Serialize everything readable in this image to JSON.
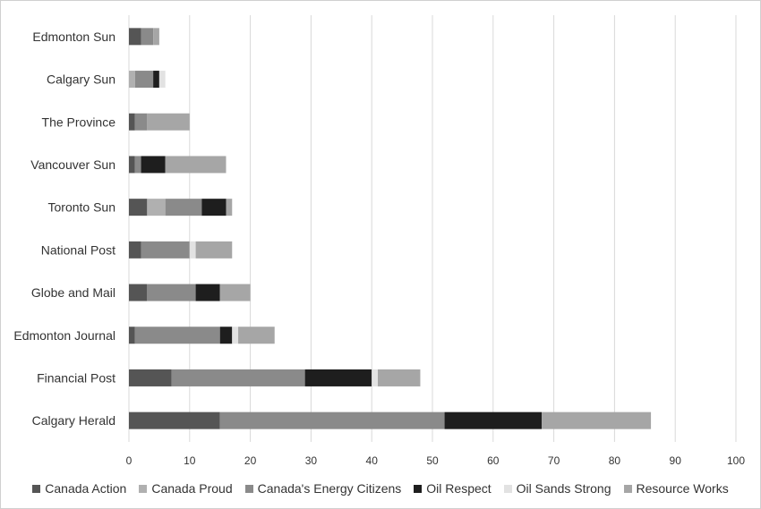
{
  "chart_data": {
    "type": "bar",
    "orientation": "horizontal",
    "stacked": true,
    "categories": [
      "Edmonton Sun",
      "Calgary Sun",
      "The Province",
      "Vancouver Sun",
      "Toronto Sun",
      "National Post",
      "Globe and Mail",
      "Edmonton Journal",
      "Financial Post",
      "Calgary Herald"
    ],
    "series": [
      {
        "name": "Canada Action",
        "color": "#555555",
        "values": [
          2,
          0,
          1,
          1,
          3,
          2,
          3,
          1,
          7,
          15
        ]
      },
      {
        "name": "Canada Proud",
        "color": "#b0b0b0",
        "values": [
          0,
          1,
          0,
          0,
          3,
          0,
          0,
          0,
          0,
          0
        ]
      },
      {
        "name": "Canada's Energy Citizens",
        "color": "#8a8a8a",
        "values": [
          2,
          3,
          2,
          1,
          6,
          8,
          8,
          14,
          22,
          37
        ]
      },
      {
        "name": "Oil Respect",
        "color": "#1e1e1e",
        "values": [
          0,
          1,
          0,
          4,
          4,
          0,
          4,
          2,
          11,
          16
        ]
      },
      {
        "name": "Oil Sands Strong",
        "color": "#e2e2e2",
        "values": [
          0,
          1,
          0,
          0,
          0,
          1,
          0,
          1,
          1,
          0
        ]
      },
      {
        "name": "Resource Works",
        "color": "#a6a6a6",
        "values": [
          1,
          0,
          7,
          10,
          1,
          6,
          5,
          6,
          7,
          18
        ]
      }
    ],
    "xlim": [
      0,
      100
    ],
    "xticks": [
      "0",
      "10",
      "20",
      "30",
      "40",
      "50",
      "60",
      "70",
      "80",
      "90",
      "100"
    ],
    "xlabel": "",
    "ylabel": "",
    "title": "",
    "grid": "vertical",
    "legend_position": "bottom"
  }
}
